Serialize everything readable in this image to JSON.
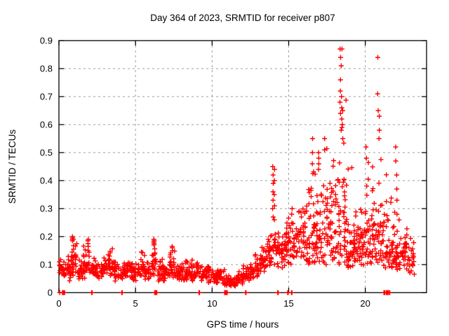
{
  "chart_data": {
    "type": "scatter",
    "title": "Day 364 of 2023, SRMTID for receiver p807",
    "xlabel": "GPS time / hours",
    "ylabel": "SRMTID / TECUs",
    "xlim": [
      0,
      24
    ],
    "ylim": [
      0,
      0.9
    ],
    "grid": true,
    "legend": "none",
    "marker": "plus",
    "marker_color": "#ff0000",
    "grid_color": "#9c9c9c",
    "axis_color": "#000000",
    "background_color": "#ffffff",
    "xticks": [
      {
        "v": 0,
        "label": "0"
      },
      {
        "v": 5,
        "label": "5"
      },
      {
        "v": 10,
        "label": "10"
      },
      {
        "v": 15,
        "label": "15"
      },
      {
        "v": 20,
        "label": "20"
      }
    ],
    "yticks": [
      {
        "v": 0.0,
        "label": "0"
      },
      {
        "v": 0.1,
        "label": "0.1"
      },
      {
        "v": 0.2,
        "label": "0.2"
      },
      {
        "v": 0.3,
        "label": "0.3"
      },
      {
        "v": 0.4,
        "label": "0.4"
      },
      {
        "v": 0.5,
        "label": "0.5"
      },
      {
        "v": 0.6,
        "label": "0.6"
      },
      {
        "v": 0.7,
        "label": "0.7"
      },
      {
        "v": 0.8,
        "label": "0.8"
      },
      {
        "v": 0.9,
        "label": "0.9"
      }
    ],
    "band_bins_format": [
      "x_start_hours",
      "y_min",
      "y_max",
      "n_points"
    ],
    "band_bin_width_hours": 0.4,
    "band_bins": [
      [
        0.0,
        0.05,
        0.13,
        22
      ],
      [
        0.4,
        0.04,
        0.14,
        24
      ],
      [
        0.8,
        0.06,
        0.2,
        26
      ],
      [
        1.2,
        0.04,
        0.13,
        24
      ],
      [
        1.6,
        0.05,
        0.19,
        26
      ],
      [
        2.0,
        0.05,
        0.14,
        24
      ],
      [
        2.4,
        0.04,
        0.12,
        22
      ],
      [
        2.8,
        0.05,
        0.13,
        22
      ],
      [
        3.2,
        0.05,
        0.17,
        24
      ],
      [
        3.6,
        0.04,
        0.13,
        22
      ],
      [
        4.0,
        0.04,
        0.12,
        22
      ],
      [
        4.4,
        0.04,
        0.13,
        22
      ],
      [
        4.8,
        0.04,
        0.11,
        22
      ],
      [
        5.2,
        0.05,
        0.15,
        24
      ],
      [
        5.6,
        0.04,
        0.12,
        22
      ],
      [
        6.0,
        0.05,
        0.19,
        26
      ],
      [
        6.4,
        0.04,
        0.13,
        22
      ],
      [
        6.8,
        0.04,
        0.1,
        22
      ],
      [
        7.2,
        0.04,
        0.16,
        24
      ],
      [
        7.6,
        0.04,
        0.11,
        22
      ],
      [
        8.0,
        0.04,
        0.13,
        24
      ],
      [
        8.4,
        0.04,
        0.12,
        22
      ],
      [
        8.8,
        0.04,
        0.11,
        22
      ],
      [
        9.2,
        0.04,
        0.1,
        22
      ],
      [
        9.6,
        0.03,
        0.11,
        22
      ],
      [
        10.0,
        0.03,
        0.09,
        22
      ],
      [
        10.4,
        0.03,
        0.09,
        20
      ],
      [
        10.8,
        0.02,
        0.07,
        20
      ],
      [
        11.2,
        0.02,
        0.06,
        20
      ],
      [
        11.6,
        0.03,
        0.08,
        20
      ],
      [
        12.0,
        0.04,
        0.1,
        22
      ],
      [
        12.4,
        0.04,
        0.11,
        22
      ],
      [
        12.8,
        0.05,
        0.15,
        24
      ],
      [
        13.2,
        0.07,
        0.18,
        24
      ],
      [
        13.6,
        0.08,
        0.22,
        26
      ],
      [
        14.0,
        0.09,
        0.24,
        26
      ],
      [
        14.4,
        0.08,
        0.22,
        24
      ],
      [
        14.8,
        0.1,
        0.28,
        26
      ],
      [
        15.2,
        0.1,
        0.26,
        24
      ],
      [
        15.6,
        0.11,
        0.33,
        26
      ],
      [
        16.0,
        0.1,
        0.42,
        28
      ],
      [
        16.4,
        0.1,
        0.5,
        28
      ],
      [
        16.8,
        0.11,
        0.5,
        28
      ],
      [
        17.2,
        0.1,
        0.55,
        28
      ],
      [
        17.6,
        0.11,
        0.58,
        28
      ],
      [
        18.0,
        0.1,
        0.62,
        30
      ],
      [
        18.4,
        0.1,
        0.7,
        30
      ],
      [
        18.8,
        0.08,
        0.5,
        28
      ],
      [
        19.2,
        0.08,
        0.32,
        26
      ],
      [
        19.6,
        0.09,
        0.33,
        26
      ],
      [
        20.0,
        0.1,
        0.52,
        28
      ],
      [
        20.4,
        0.1,
        0.5,
        28
      ],
      [
        20.8,
        0.1,
        0.62,
        28
      ],
      [
        21.2,
        0.08,
        0.5,
        26
      ],
      [
        21.6,
        0.08,
        0.42,
        26
      ],
      [
        22.0,
        0.08,
        0.35,
        26
      ],
      [
        22.4,
        0.08,
        0.24,
        24
      ],
      [
        22.8,
        0.06,
        0.2,
        22
      ]
    ],
    "spike_points": [
      {
        "x": 0.9,
        "ys": [
          0.185,
          0.19,
          0.195,
          0.2
        ]
      },
      {
        "x": 1.9,
        "ys": [
          0.165,
          0.175,
          0.185,
          0.19
        ]
      },
      {
        "x": 6.2,
        "ys": [
          0.17,
          0.175,
          0.18,
          0.185,
          0.19
        ]
      },
      {
        "x": 7.4,
        "ys": [
          0.15,
          0.16,
          0.165
        ]
      },
      {
        "x": 13.97,
        "ys": [
          0.27,
          0.3,
          0.33,
          0.36,
          0.39,
          0.42,
          0.45
        ]
      },
      {
        "x": 14.05,
        "ys": [
          0.26,
          0.31,
          0.35,
          0.4,
          0.44
        ]
      },
      {
        "x": 15.2,
        "ys": [
          0.28,
          0.3
        ]
      },
      {
        "x": 16.55,
        "ys": [
          0.46,
          0.5,
          0.55
        ]
      },
      {
        "x": 16.95,
        "ys": [
          0.44,
          0.46,
          0.48,
          0.5
        ]
      },
      {
        "x": 17.35,
        "ys": [
          0.51,
          0.55
        ]
      },
      {
        "x": 18.37,
        "ys": [
          0.64,
          0.68,
          0.72,
          0.76,
          0.84,
          0.87
        ]
      },
      {
        "x": 18.45,
        "ys": [
          0.58,
          0.62,
          0.66,
          0.7,
          0.81,
          0.87
        ]
      },
      {
        "x": 18.52,
        "ys": [
          0.55,
          0.6,
          0.65
        ]
      },
      {
        "x": 20.05,
        "ys": [
          0.48,
          0.52
        ]
      },
      {
        "x": 20.83,
        "ys": [
          0.65,
          0.71,
          0.84
        ]
      },
      {
        "x": 20.9,
        "ys": [
          0.55,
          0.58,
          0.63
        ]
      },
      {
        "x": 21.97,
        "ys": [
          0.47,
          0.52
        ]
      },
      {
        "x": 22.05,
        "ys": [
          0.28,
          0.33,
          0.37,
          0.42
        ]
      }
    ],
    "zero_value_clusters_format": [
      "x_hours",
      "n_points"
    ],
    "zero_value_clusters": [
      [
        0.05,
        1
      ],
      [
        0.3,
        5
      ],
      [
        2.15,
        2
      ],
      [
        4.12,
        2
      ],
      [
        6.32,
        5
      ],
      [
        9.16,
        2
      ],
      [
        10.9,
        6
      ],
      [
        12.2,
        2
      ],
      [
        14.3,
        2
      ],
      [
        14.95,
        2
      ],
      [
        15.2,
        2
      ],
      [
        21.25,
        3
      ],
      [
        21.45,
        5
      ],
      [
        21.6,
        1
      ]
    ]
  }
}
